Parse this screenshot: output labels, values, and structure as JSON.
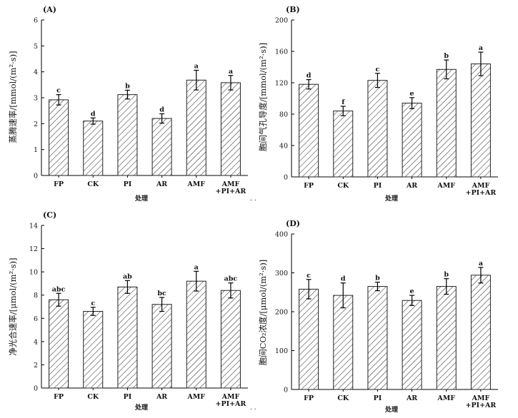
{
  "chart_data": [
    {
      "type": "bar",
      "panel_label": "(A)",
      "ylabel": "蒸腾速率/[mmol/(m²·s)]",
      "xlabel": "处理",
      "ylim": [
        0,
        6
      ],
      "yticks": [
        0,
        1,
        2,
        3,
        4,
        5,
        6
      ],
      "categories": [
        [
          "FP"
        ],
        [
          "CK"
        ],
        [
          "PI"
        ],
        [
          "AR"
        ],
        [
          "AMF"
        ],
        [
          "AMF",
          "+PI+AR"
        ]
      ],
      "values": [
        2.92,
        2.1,
        3.12,
        2.2,
        3.68,
        3.58
      ],
      "errors": [
        0.2,
        0.12,
        0.17,
        0.18,
        0.38,
        0.28
      ],
      "significance": [
        "c",
        "d",
        "b",
        "d",
        "a",
        "a"
      ],
      "hatch": "diagonal"
    },
    {
      "type": "bar",
      "panel_label": "(B)",
      "ylabel": "胞间气孔导度/[mmol/(m²·s)]",
      "xlabel": "处理",
      "ylim": [
        0,
        200
      ],
      "yticks": [
        0,
        40,
        80,
        120,
        160,
        200
      ],
      "categories": [
        [
          "FP"
        ],
        [
          "CK"
        ],
        [
          "PI"
        ],
        [
          "AR"
        ],
        [
          "AMF"
        ],
        [
          "AMF",
          "+PI+AR"
        ]
      ],
      "values": [
        118,
        84,
        123,
        94,
        137,
        144
      ],
      "errors": [
        6,
        6,
        9,
        7,
        12,
        15
      ],
      "significance": [
        "d",
        "f",
        "c",
        "e",
        "b",
        "a"
      ],
      "hatch": "diagonal"
    },
    {
      "type": "bar",
      "panel_label": "(C)",
      "ylabel": "净光合速率/[μmol/(m²·s)]",
      "xlabel": "处理",
      "ylim": [
        0,
        14
      ],
      "yticks": [
        0,
        2,
        4,
        6,
        8,
        10,
        12,
        14
      ],
      "categories": [
        [
          "FP"
        ],
        [
          "CK"
        ],
        [
          "PI"
        ],
        [
          "AR"
        ],
        [
          "AMF"
        ],
        [
          "AMF",
          "+PI+AR"
        ]
      ],
      "values": [
        7.6,
        6.6,
        8.7,
        7.2,
        9.2,
        8.4
      ],
      "errors": [
        0.55,
        0.35,
        0.55,
        0.6,
        0.85,
        0.65
      ],
      "significance": [
        "abc",
        "c",
        "ab",
        "bc",
        "a",
        "abc"
      ],
      "hatch": "diagonal"
    },
    {
      "type": "bar",
      "panel_label": "(D)",
      "ylabel": "胞间CO₂浓度/[μmol/(m²·s)]",
      "xlabel": "处理",
      "ylim": [
        0,
        400
      ],
      "yticks": [
        0,
        100,
        200,
        300,
        400
      ],
      "categories": [
        [
          "FP"
        ],
        [
          "CK"
        ],
        [
          "PI"
        ],
        [
          "AR"
        ],
        [
          "AMF"
        ],
        [
          "AMF",
          "+PI+AR"
        ]
      ],
      "values": [
        258,
        242,
        265,
        229,
        265,
        294
      ],
      "errors": [
        25,
        32,
        11,
        13,
        20,
        20
      ],
      "significance": [
        "c",
        "d",
        "b",
        "e",
        "b",
        "a"
      ],
      "hatch": "diagonal"
    }
  ]
}
